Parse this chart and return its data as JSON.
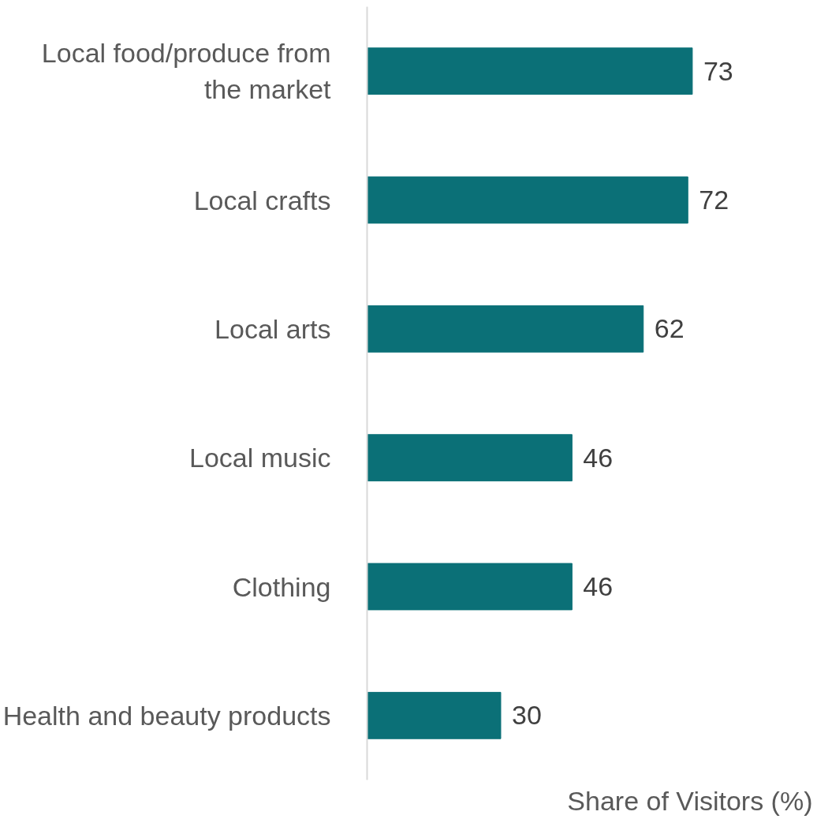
{
  "chart_data": {
    "type": "bar",
    "orientation": "horizontal",
    "xlabel": "Share of Visitors (%)",
    "categories": [
      "Local food/produce from the market",
      "Local crafts",
      "Local arts",
      "Local music",
      "Clothing",
      "Health and beauty products"
    ],
    "values": [
      73,
      72,
      62,
      46,
      46,
      30
    ],
    "color": "#0b7077",
    "data_labels": true,
    "grid": false
  }
}
